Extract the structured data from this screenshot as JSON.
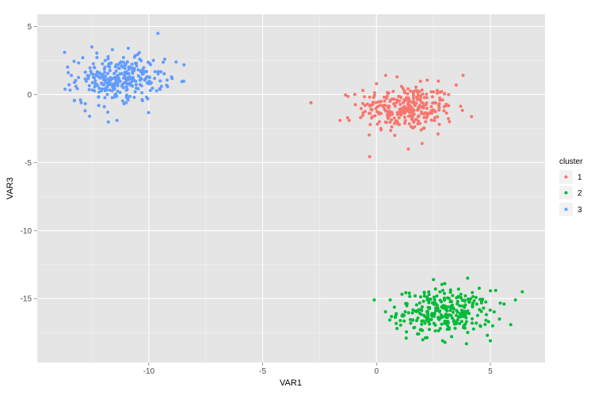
{
  "chart_data": {
    "type": "scatter",
    "xlabel": "VAR1",
    "ylabel": "VAR3",
    "xlim": [
      -14.9,
      7.4
    ],
    "ylim": [
      -19.7,
      5.9
    ],
    "x_ticks": [
      -10,
      -5,
      0,
      5
    ],
    "y_ticks": [
      5,
      0,
      -5,
      -10,
      -15
    ],
    "x_tick_labels": [
      "-10",
      "-5",
      "0",
      "5"
    ],
    "y_tick_labels": [
      "5",
      "0",
      "-5",
      "-10",
      "-15"
    ],
    "grid": true,
    "panel_background": "#e5e5e5",
    "grid_color": "#ffffff",
    "legend": {
      "title": "cluster",
      "position": "right",
      "entries": [
        {
          "label": "1",
          "color": "#f8766d"
        },
        {
          "label": "2",
          "color": "#00ba38"
        },
        {
          "label": "3",
          "color": "#619cff"
        }
      ]
    },
    "series": [
      {
        "name": "1",
        "color": "#f8766d",
        "n_points": 300,
        "center": [
          1.3,
          -1.0
        ],
        "spread": [
          1.15,
          1.0
        ],
        "x": [
          -1.6,
          -1.2,
          -0.6,
          -0.5,
          0.0,
          0.4,
          0.9,
          1.1,
          1.6,
          2.4,
          2.9,
          3.5,
          3.8,
          -0.7,
          0.2,
          0.8,
          1.4,
          2.0,
          2.7,
          3.2,
          1.3,
          0.6,
          1.9,
          2.5,
          0.1,
          1.0,
          1.5,
          2.2,
          -0.3,
          0.5
        ],
        "y": [
          -1.9,
          -1.9,
          0.3,
          -0.8,
          0.8,
          1.4,
          1.3,
          0.6,
          -1.3,
          -1.2,
          -0.4,
          0.7,
          1.4,
          -1.7,
          -2.6,
          -3.0,
          -4.0,
          -3.6,
          -2.9,
          -2.0,
          -1.1,
          -0.5,
          -0.8,
          0.2,
          -1.4,
          -2.2,
          -0.9,
          -1.7,
          -0.2,
          0.1
        ]
      },
      {
        "name": "2",
        "color": "#00ba38",
        "n_points": 300,
        "center": [
          3.0,
          -16.0
        ],
        "spread": [
          1.15,
          0.95
        ],
        "x": [
          -0.1,
          0.6,
          1.3,
          2.1,
          2.5,
          3.0,
          3.6,
          4.0,
          4.4,
          5.0,
          5.6,
          6.1,
          6.4,
          1.8,
          2.9,
          3.3,
          4.2,
          5.1,
          2.2,
          3.8,
          2.6,
          3.1,
          1.5,
          4.7,
          3.4,
          2.8,
          0.9,
          5.4,
          3.9,
          2.3
        ],
        "y": [
          -15.1,
          -15.1,
          -17.9,
          -14.6,
          -13.6,
          -13.9,
          -14.3,
          -13.5,
          -15.4,
          -18.1,
          -15.4,
          -15.1,
          -14.5,
          -17.6,
          -18.1,
          -17.8,
          -16.8,
          -17.0,
          -16.4,
          -16.2,
          -15.7,
          -15.9,
          -16.8,
          -15.7,
          -16.6,
          -17.2,
          -17.2,
          -16.5,
          -14.8,
          -15.3
        ]
      },
      {
        "name": "3",
        "color": "#619cff",
        "n_points": 300,
        "center": [
          -11.3,
          1.1
        ],
        "spread": [
          1.05,
          0.95
        ],
        "x": [
          -13.7,
          -13.4,
          -13.0,
          -12.8,
          -12.6,
          -12.2,
          -11.8,
          -11.4,
          -11.0,
          -10.6,
          -10.2,
          -9.8,
          -9.6,
          -9.3,
          -9.0,
          -8.8,
          -12.5,
          -12.9,
          -11.6,
          -10.9,
          -10.4,
          -11.9,
          -11.1,
          -10.0,
          -12.1,
          -11.5,
          -13.2,
          -9.5,
          -10.7,
          -12.4
        ],
        "y": [
          3.1,
          1.4,
          -0.4,
          -1.2,
          -1.6,
          -0.8,
          -1.3,
          -1.9,
          -0.6,
          0.2,
          1.7,
          2.5,
          4.5,
          2.6,
          1.3,
          2.4,
          3.5,
          2.7,
          3.3,
          3.4,
          2.6,
          0.9,
          1.2,
          0.8,
          1.5,
          0.4,
          0.6,
          1.0,
          1.9,
          2.0
        ]
      }
    ]
  }
}
